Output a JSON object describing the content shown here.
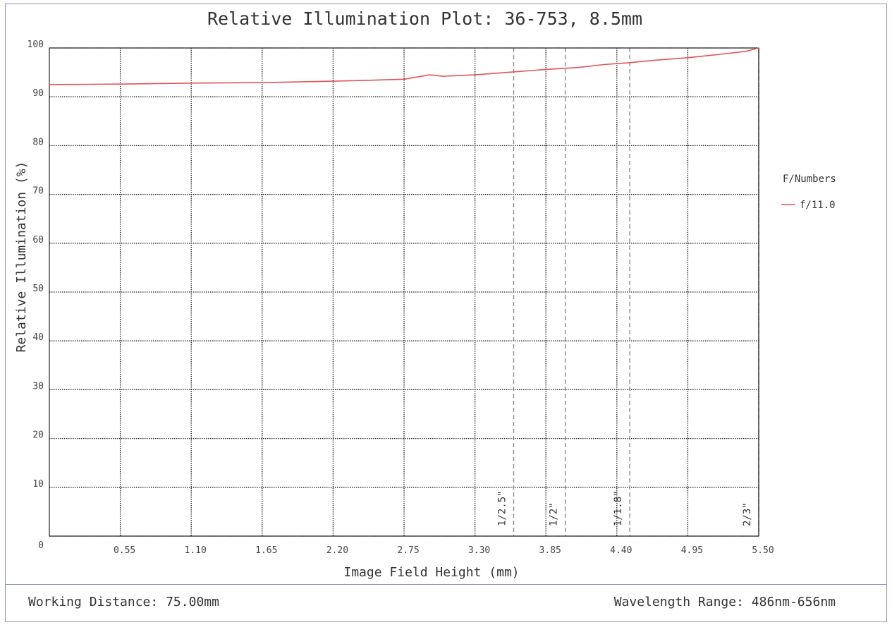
{
  "footer": {
    "working_distance": "Working Distance: 75.00mm",
    "wavelength_range": "Wavelength Range: 486nm-656nm"
  },
  "colors": {
    "series": "#e05555",
    "frame": "#8f8fc8",
    "grid": "#222222"
  },
  "chart_data": {
    "type": "line",
    "title": "Relative Illumination Plot: 36-753, 8.5mm",
    "xlabel": "Image Field Height (mm)",
    "ylabel": "Relative Illumination (%)",
    "xlim": [
      0,
      5.5
    ],
    "ylim": [
      0,
      100
    ],
    "x_ticks": [
      "0.55",
      "1.10",
      "1.65",
      "2.20",
      "2.75",
      "3.30",
      "3.85",
      "4.40",
      "4.95",
      "5.50"
    ],
    "y_ticks": [
      "0",
      "10",
      "20",
      "30",
      "40",
      "50",
      "60",
      "70",
      "80",
      "90",
      "100"
    ],
    "grid": true,
    "legend": {
      "title": "F/Numbers",
      "placement": "right"
    },
    "series": [
      {
        "name": "f/11.0",
        "x": [
          0,
          0.55,
          1.1,
          1.65,
          2.2,
          2.5,
          2.75,
          2.95,
          3.05,
          3.3,
          3.6,
          3.85,
          4.1,
          4.3,
          4.5,
          4.7,
          4.95,
          5.2,
          5.4,
          5.5
        ],
        "y": [
          92.5,
          92.6,
          92.8,
          92.9,
          93.2,
          93.4,
          93.6,
          94.5,
          94.2,
          94.5,
          95.1,
          95.6,
          96.0,
          96.6,
          97.0,
          97.5,
          98.0,
          98.7,
          99.3,
          100
        ]
      }
    ],
    "sensor_markers": [
      {
        "label": "1/2.5\"",
        "x": 3.6
      },
      {
        "label": "1/2\"",
        "x": 4.0
      },
      {
        "label": "1/1.8\"",
        "x": 4.5
      },
      {
        "label": "2/3\"",
        "x": 5.5
      }
    ]
  }
}
